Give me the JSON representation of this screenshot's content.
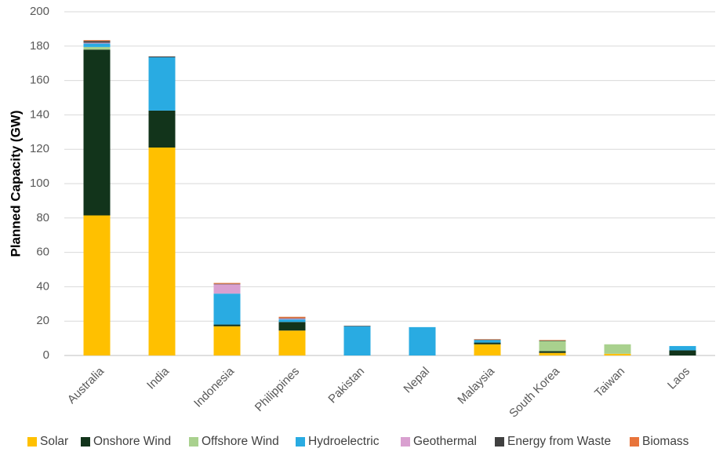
{
  "chart_data": {
    "type": "bar",
    "stacked": true,
    "title": "",
    "xlabel": "",
    "ylabel": "Planned Capacity (GW)",
    "ylim": [
      0,
      200
    ],
    "yticks": [
      0,
      20,
      40,
      60,
      80,
      100,
      120,
      140,
      160,
      180,
      200
    ],
    "grid": true,
    "legend_position": "bottom",
    "categories": [
      "Australia",
      "India",
      "Indonesia",
      "Philippines",
      "Pakistan",
      "Nepal",
      "Malaysia",
      "South Korea",
      "Taiwan",
      "Laos"
    ],
    "series": [
      {
        "name": "Solar",
        "color": "#FFC000",
        "values": [
          81.5,
          121,
          17,
          14.5,
          0,
          0,
          6.5,
          1.5,
          1,
          0
        ]
      },
      {
        "name": "Onshore Wind",
        "color": "#12341B",
        "values": [
          96.5,
          21.5,
          1,
          5,
          0,
          0,
          1,
          1,
          0,
          3
        ]
      },
      {
        "name": "Offshore Wind",
        "color": "#A9D18E",
        "values": [
          1.5,
          0,
          0,
          0,
          0,
          0,
          0,
          6,
          5.5,
          0
        ]
      },
      {
        "name": "Hydroelectric",
        "color": "#29ABE2",
        "values": [
          2,
          31,
          18,
          1.5,
          17,
          16.5,
          1.5,
          0,
          0,
          2.5
        ]
      },
      {
        "name": "Geothermal",
        "color": "#D9A0D0",
        "values": [
          0.5,
          0,
          5.5,
          0.5,
          0,
          0,
          0,
          0,
          0,
          0
        ]
      },
      {
        "name": "Energy from Waste",
        "color": "#404040",
        "values": [
          1,
          0.5,
          0.2,
          0.3,
          0.3,
          0,
          0.3,
          0.2,
          0,
          0
        ]
      },
      {
        "name": "Biomass",
        "color": "#E8743B",
        "values": [
          0.5,
          0,
          0.5,
          0.7,
          0,
          0,
          0.2,
          0.3,
          0,
          0
        ]
      }
    ]
  }
}
